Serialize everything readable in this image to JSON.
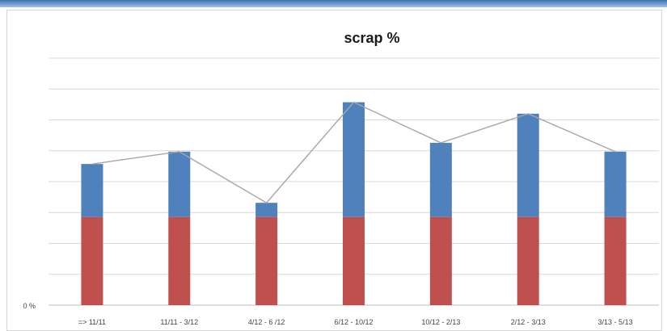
{
  "chart_data": {
    "type": "bar",
    "stacked": true,
    "overlay_line": true,
    "title": "scrap %",
    "xlabel": "",
    "ylabel": "",
    "y_tick_labels": [
      "0 %"
    ],
    "ylim": [
      0,
      28
    ],
    "grid": true,
    "legend": "none",
    "categories": [
      "=> 11/11",
      "11/11 - 3/12",
      "4/12 - 6 /12",
      "6/12 - 10/12",
      "10/12 - 2/13",
      "2/12 - 3/13",
      "3/13 - 5/13"
    ],
    "series": [
      {
        "values": [
          10.0,
          10.0,
          10.0,
          10.0,
          10.0,
          10.0,
          10.0
        ],
        "color": "#c0504d"
      },
      {
        "values": [
          6.0,
          7.4,
          1.6,
          13.0,
          8.4,
          11.7,
          7.4
        ],
        "color": "#4f81bd"
      }
    ],
    "line_color": "#a6a6a6"
  }
}
